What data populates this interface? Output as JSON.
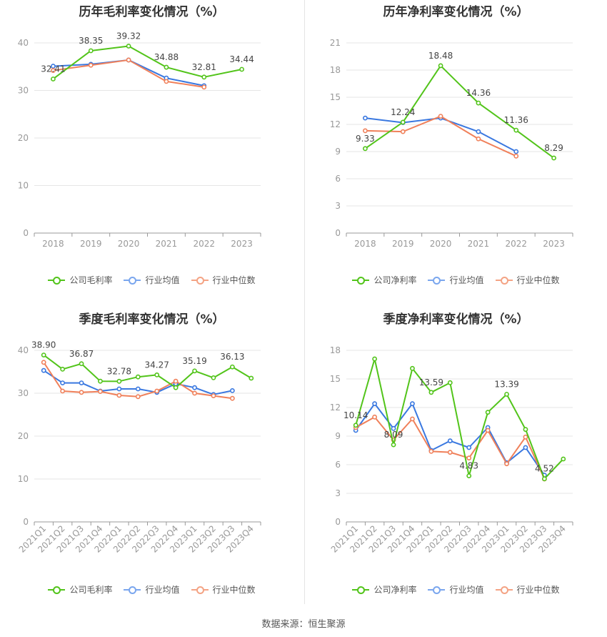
{
  "source": "数据来源：恒生聚源",
  "colors": {
    "company": "#52c41a",
    "avg": "#3a78e0",
    "median": "#f0805a",
    "grid": "#e6e6e6",
    "axis": "#999999"
  },
  "chart_data": [
    {
      "type": "line",
      "title": "历年毛利率变化情况（%）",
      "categories": [
        "2018",
        "2019",
        "2020",
        "2021",
        "2022",
        "2023"
      ],
      "ylim": [
        0,
        40
      ],
      "yticks": [
        0,
        10,
        20,
        30,
        40
      ],
      "series": [
        {
          "name": "公司毛利率",
          "values": [
            32.41,
            38.35,
            39.32,
            34.88,
            32.81,
            34.44
          ],
          "labels": [
            "32.41",
            "38.35",
            "39.32",
            "34.88",
            "32.81",
            "34.44"
          ]
        },
        {
          "name": "行业均值",
          "values": [
            35.1,
            35.5,
            36.4,
            32.6,
            31.0,
            null
          ]
        },
        {
          "name": "行业中位数",
          "values": [
            34.2,
            35.3,
            36.4,
            31.9,
            30.7,
            null
          ]
        }
      ]
    },
    {
      "type": "line",
      "title": "历年净利率变化情况（%）",
      "categories": [
        "2018",
        "2019",
        "2020",
        "2021",
        "2022",
        "2023"
      ],
      "ylim": [
        0,
        21
      ],
      "yticks": [
        0,
        3,
        6,
        9,
        12,
        15,
        18,
        21
      ],
      "series": [
        {
          "name": "公司净利率",
          "values": [
            9.33,
            12.24,
            18.48,
            14.36,
            11.36,
            8.29
          ],
          "labels": [
            "9.33",
            "12.24",
            "18.48",
            "14.36",
            "11.36",
            "8.29"
          ]
        },
        {
          "name": "行业均值",
          "values": [
            12.7,
            12.2,
            12.7,
            11.2,
            9.0,
            null
          ]
        },
        {
          "name": "行业中位数",
          "values": [
            11.3,
            11.2,
            12.9,
            10.4,
            8.5,
            null
          ]
        }
      ]
    },
    {
      "type": "line",
      "title": "季度毛利率变化情况（%）",
      "categories": [
        "2021Q1",
        "2021Q2",
        "2021Q3",
        "2021Q4",
        "2022Q1",
        "2022Q2",
        "2022Q3",
        "2022Q4",
        "2023Q1",
        "2023Q2",
        "2023Q3",
        "2023Q4"
      ],
      "ylim": [
        0,
        40
      ],
      "yticks": [
        0,
        10,
        20,
        30,
        40
      ],
      "series": [
        {
          "name": "公司毛利率",
          "values": [
            38.9,
            35.6,
            36.87,
            32.8,
            32.78,
            33.8,
            34.27,
            31.3,
            35.19,
            33.6,
            36.13,
            33.5
          ],
          "labels": [
            "38.90",
            "",
            "36.87",
            "",
            "32.78",
            "",
            "34.27",
            "",
            "35.19",
            "",
            "36.13",
            ""
          ]
        },
        {
          "name": "行业均值",
          "values": [
            35.3,
            32.4,
            32.4,
            30.5,
            31.0,
            31.0,
            30.2,
            32.2,
            31.3,
            29.7,
            30.6,
            null
          ]
        },
        {
          "name": "行业中位数",
          "values": [
            37.2,
            30.5,
            30.2,
            30.4,
            29.5,
            29.2,
            30.5,
            32.8,
            30.0,
            29.4,
            28.8,
            null
          ]
        }
      ]
    },
    {
      "type": "line",
      "title": "季度净利率变化情况（%）",
      "categories": [
        "2021Q1",
        "2021Q2",
        "2021Q3",
        "2021Q4",
        "2022Q1",
        "2022Q2",
        "2022Q3",
        "2022Q4",
        "2023Q1",
        "2023Q2",
        "2023Q3",
        "2023Q4"
      ],
      "ylim": [
        0,
        18
      ],
      "yticks": [
        0,
        3,
        6,
        9,
        12,
        15,
        18
      ],
      "series": [
        {
          "name": "公司净利率",
          "values": [
            10.14,
            17.1,
            8.09,
            16.1,
            13.59,
            14.6,
            4.83,
            11.5,
            13.39,
            9.7,
            4.52,
            6.6
          ],
          "labels": [
            "10.14",
            "",
            "8.09",
            "",
            "13.59",
            "",
            "4.83",
            "",
            "13.39",
            "",
            "4.52",
            ""
          ]
        },
        {
          "name": "行业均值",
          "values": [
            9.6,
            12.4,
            9.8,
            12.4,
            7.5,
            8.5,
            7.8,
            9.9,
            6.2,
            7.8,
            4.9,
            null
          ]
        },
        {
          "name": "行业中位数",
          "values": [
            9.9,
            11.0,
            8.6,
            10.8,
            7.4,
            7.3,
            6.7,
            9.6,
            6.1,
            8.9,
            4.5,
            null
          ]
        }
      ]
    }
  ]
}
